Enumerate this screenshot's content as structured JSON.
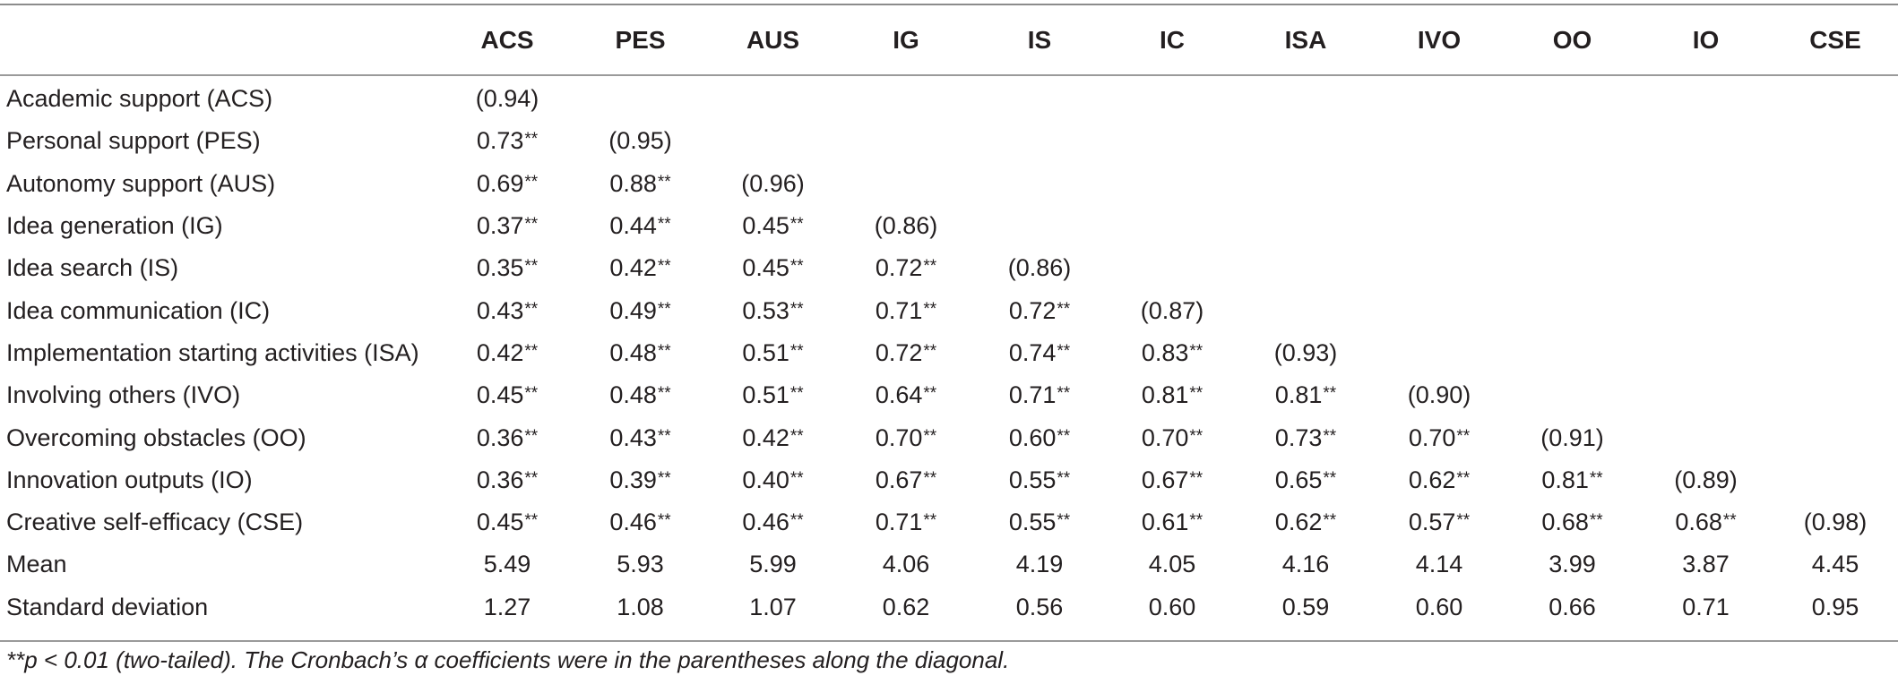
{
  "table": {
    "columns": [
      "",
      "ACS",
      "PES",
      "AUS",
      "IG",
      "IS",
      "IC",
      "ISA",
      "IVO",
      "OO",
      "IO",
      "CSE"
    ],
    "rows": [
      {
        "label": "Academic support (ACS)",
        "cells": [
          "(0.94)",
          "",
          "",
          "",
          "",
          "",
          "",
          "",
          "",
          "",
          ""
        ]
      },
      {
        "label": "Personal support (PES)",
        "cells": [
          "0.73**",
          "(0.95)",
          "",
          "",
          "",
          "",
          "",
          "",
          "",
          "",
          ""
        ]
      },
      {
        "label": "Autonomy support (AUS)",
        "cells": [
          "0.69**",
          "0.88**",
          "(0.96)",
          "",
          "",
          "",
          "",
          "",
          "",
          "",
          ""
        ]
      },
      {
        "label": "Idea generation (IG)",
        "cells": [
          "0.37**",
          "0.44**",
          "0.45**",
          "(0.86)",
          "",
          "",
          "",
          "",
          "",
          "",
          ""
        ]
      },
      {
        "label": "Idea search (IS)",
        "cells": [
          "0.35**",
          "0.42**",
          "0.45**",
          "0.72**",
          "(0.86)",
          "",
          "",
          "",
          "",
          "",
          ""
        ]
      },
      {
        "label": "Idea communication (IC)",
        "cells": [
          "0.43**",
          "0.49**",
          "0.53**",
          "0.71**",
          "0.72**",
          "(0.87)",
          "",
          "",
          "",
          "",
          ""
        ]
      },
      {
        "label": "Implementation starting activities (ISA)",
        "cells": [
          "0.42**",
          "0.48**",
          "0.51**",
          "0.72**",
          "0.74**",
          "0.83**",
          "(0.93)",
          "",
          "",
          "",
          ""
        ]
      },
      {
        "label": "Involving others (IVO)",
        "cells": [
          "0.45**",
          "0.48**",
          "0.51**",
          "0.64**",
          "0.71**",
          "0.81**",
          "0.81**",
          "(0.90)",
          "",
          "",
          ""
        ]
      },
      {
        "label": "Overcoming obstacles (OO)",
        "cells": [
          "0.36**",
          "0.43**",
          "0.42**",
          "0.70**",
          "0.60**",
          "0.70**",
          "0.73**",
          "0.70**",
          "(0.91)",
          "",
          ""
        ]
      },
      {
        "label": "Innovation outputs (IO)",
        "cells": [
          "0.36**",
          "0.39**",
          "0.40**",
          "0.67**",
          "0.55**",
          "0.67**",
          "0.65**",
          "0.62**",
          "0.81**",
          "(0.89)",
          ""
        ]
      },
      {
        "label": "Creative self-efficacy (CSE)",
        "cells": [
          "0.45**",
          "0.46**",
          "0.46**",
          "0.71**",
          "0.55**",
          "0.61**",
          "0.62**",
          "0.57**",
          "0.68**",
          "0.68**",
          "(0.98)"
        ]
      },
      {
        "label": "Mean",
        "cells": [
          "5.49",
          "5.93",
          "5.99",
          "4.06",
          "4.19",
          "4.05",
          "4.16",
          "4.14",
          "3.99",
          "3.87",
          "4.45"
        ]
      },
      {
        "label": "Standard deviation",
        "cells": [
          "1.27",
          "1.08",
          "1.07",
          "0.62",
          "0.56",
          "0.60",
          "0.59",
          "0.60",
          "0.66",
          "0.71",
          "0.95"
        ]
      }
    ]
  },
  "footnote": "**p < 0.01 (two-tailed). The Cronbach’s α coefficients were in the parentheses along the diagonal."
}
